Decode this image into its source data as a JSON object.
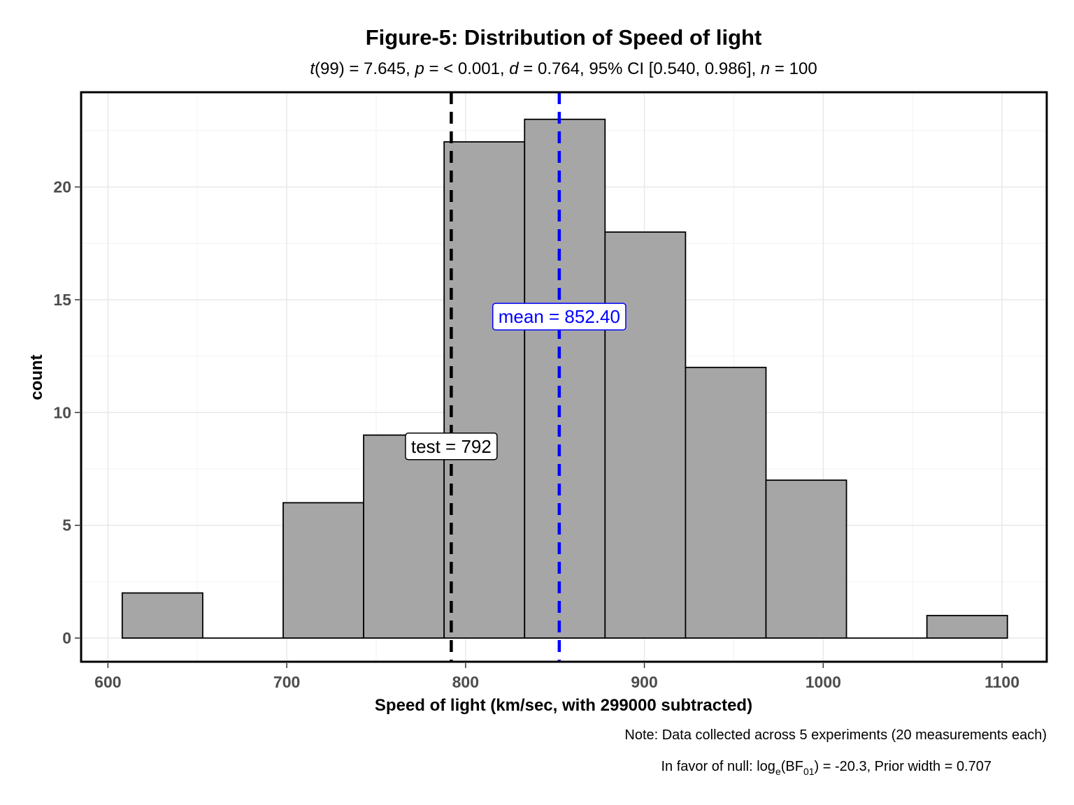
{
  "chart_data": {
    "type": "bar",
    "title": "Figure-5: Distribution of Speed of light",
    "subtitle": {
      "t_df": "99",
      "t_value": "7.645",
      "p_value": "< 0.001",
      "d_value": "0.764",
      "ci": "95% CI [0.540, 0.986]",
      "n_value": "100"
    },
    "xlabel": "Speed of light (km/sec, with 299000 subtracted)",
    "ylabel": "count",
    "xlim": [
      585,
      1125
    ],
    "ylim": [
      -1.05,
      24.2
    ],
    "x_ticks": [
      600,
      700,
      800,
      900,
      1000,
      1100
    ],
    "x_tick_labels": [
      "600",
      "700",
      "800",
      "900",
      "1000",
      "1100"
    ],
    "y_ticks": [
      0,
      5,
      10,
      15,
      20
    ],
    "y_tick_labels": [
      "0",
      "5",
      "10",
      "15",
      "20"
    ],
    "grid": true,
    "bin_width": 45,
    "bins": [
      {
        "start": 608,
        "end": 653,
        "count": 2
      },
      {
        "start": 653,
        "end": 698,
        "count": 0
      },
      {
        "start": 698,
        "end": 743,
        "count": 6
      },
      {
        "start": 743,
        "end": 788,
        "count": 9
      },
      {
        "start": 788,
        "end": 833,
        "count": 22
      },
      {
        "start": 833,
        "end": 878,
        "count": 23
      },
      {
        "start": 878,
        "end": 923,
        "count": 18
      },
      {
        "start": 923,
        "end": 968,
        "count": 12
      },
      {
        "start": 968,
        "end": 1013,
        "count": 7
      },
      {
        "start": 1013,
        "end": 1058,
        "count": 0
      },
      {
        "start": 1058,
        "end": 1103,
        "count": 1
      }
    ],
    "reference_lines": [
      {
        "value": 792,
        "label_name": "test",
        "label_value": "792",
        "label_y": 8.5,
        "color": "#000000"
      },
      {
        "value": 852.4,
        "label_name": "mean",
        "label_value": "852.40",
        "label_y": 14.25,
        "color": "#0000ff"
      }
    ],
    "bar_fill": "#a6a6a6",
    "captions": {
      "note": "Note: Data collected across 5 experiments (20 measurements each)",
      "bf_prefix": "In favor of null: log",
      "bf_base": "e",
      "bf_open": "(BF",
      "bf_sub": "01",
      "bf_suffix": ") = -20.3, Prior width = 0.707"
    }
  }
}
